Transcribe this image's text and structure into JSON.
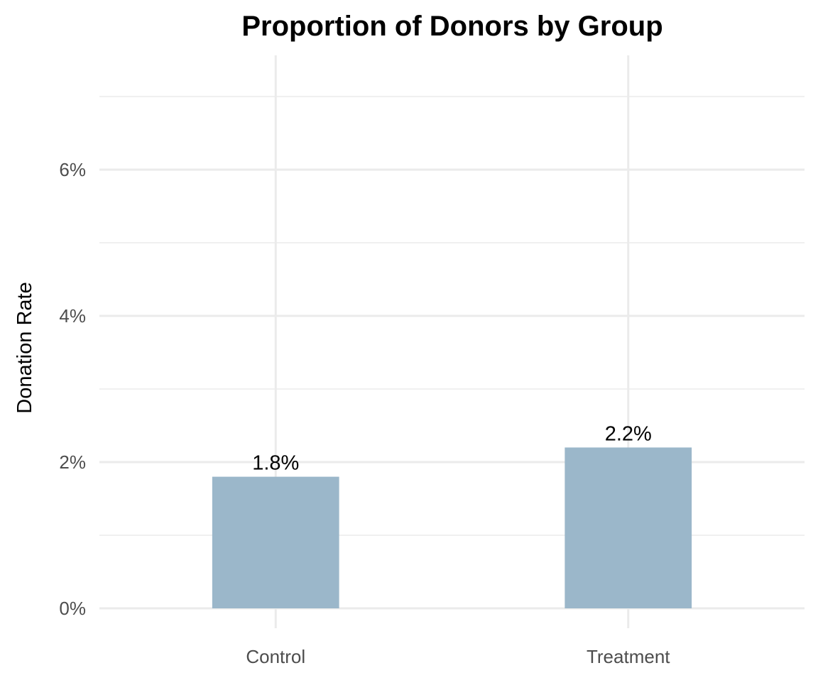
{
  "chart_data": {
    "type": "bar",
    "title": "Proportion of Donors by Group",
    "xlabel": "",
    "ylabel": "Donation Rate",
    "categories": [
      "Control",
      "Treatment"
    ],
    "values": [
      1.8,
      2.2
    ],
    "value_labels": [
      "1.8%",
      "2.2%"
    ],
    "value_unit": "%",
    "ylim": [
      0,
      7
    ],
    "y_ticks": [
      0,
      2,
      4,
      6
    ],
    "y_tick_labels": [
      "0%",
      "2%",
      "4%",
      "6%"
    ],
    "y_minor_ticks": [
      1,
      3,
      5,
      7
    ],
    "grid": true,
    "legend": "none",
    "colors": {
      "bar": "#9bb7ca",
      "grid": "#ebebeb",
      "tick_text": "#4d4d4d",
      "text": "#000000"
    }
  }
}
